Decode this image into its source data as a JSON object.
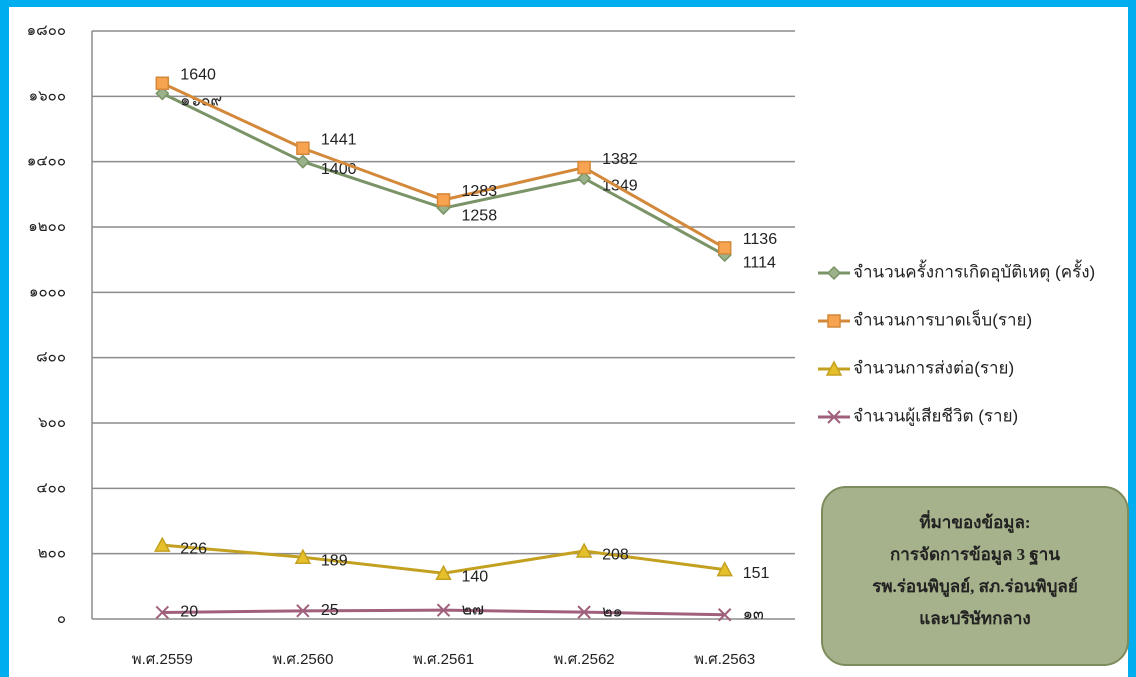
{
  "chart_data": {
    "type": "line",
    "categories": [
      "พ.ศ.2559",
      "พ.ศ.2560",
      "พ.ศ.2561",
      "พ.ศ.2562",
      "พ.ศ.2563"
    ],
    "series": [
      {
        "name": "จำนวนครั้งการเกิดอุบัติเหตุ (ครั้ง)",
        "color": "#7a9467",
        "marker": "diamond",
        "values": [
          1609,
          1400,
          1258,
          1349,
          1114
        ],
        "value_labels": [
          "๑๖๐๙",
          "1400",
          "1258",
          "1349",
          "1114"
        ]
      },
      {
        "name": "จำนวนการบาดเจ็บ(ราย)",
        "color": "#d4883a",
        "marker": "square",
        "values": [
          1640,
          1441,
          1283,
          1382,
          1136
        ]
      },
      {
        "name": "จำนวนการส่งต่อ(ราย)",
        "color": "#c4a020",
        "marker": "triangle",
        "values": [
          226,
          189,
          140,
          208,
          151
        ]
      },
      {
        "name": "จำนวนผู้เสียชีวิต (ราย)",
        "color": "#a0607c",
        "marker": "x",
        "values": [
          20,
          25,
          27,
          21,
          13
        ],
        "value_labels": [
          "20",
          "25",
          "๒๗",
          "๒๑",
          "๑๓"
        ]
      }
    ],
    "ylim": [
      0,
      1800
    ],
    "yticks": [
      {
        "value": 0,
        "label": "๐"
      },
      {
        "value": 200,
        "label": "๒๐๐"
      },
      {
        "value": 400,
        "label": "๔๐๐"
      },
      {
        "value": 600,
        "label": "๖๐๐"
      },
      {
        "value": 800,
        "label": "๘๐๐"
      },
      {
        "value": 1000,
        "label": "๑๐๐๐"
      },
      {
        "value": 1200,
        "label": "๑๒๐๐"
      },
      {
        "value": 1400,
        "label": "๑๔๐๐"
      },
      {
        "value": 1600,
        "label": "๑๖๐๐"
      },
      {
        "value": 1800,
        "label": "๑๘๐๐"
      }
    ],
    "grid": true,
    "legend": "right",
    "annotation": [
      "ที่มาของข้อมูล:",
      "การจัดการข้อมูล 3 ฐาน",
      "รพ.ร่อนพิบูลย์, สภ.ร่อนพิบูลย์",
      "และบริษัทกลาง"
    ]
  }
}
